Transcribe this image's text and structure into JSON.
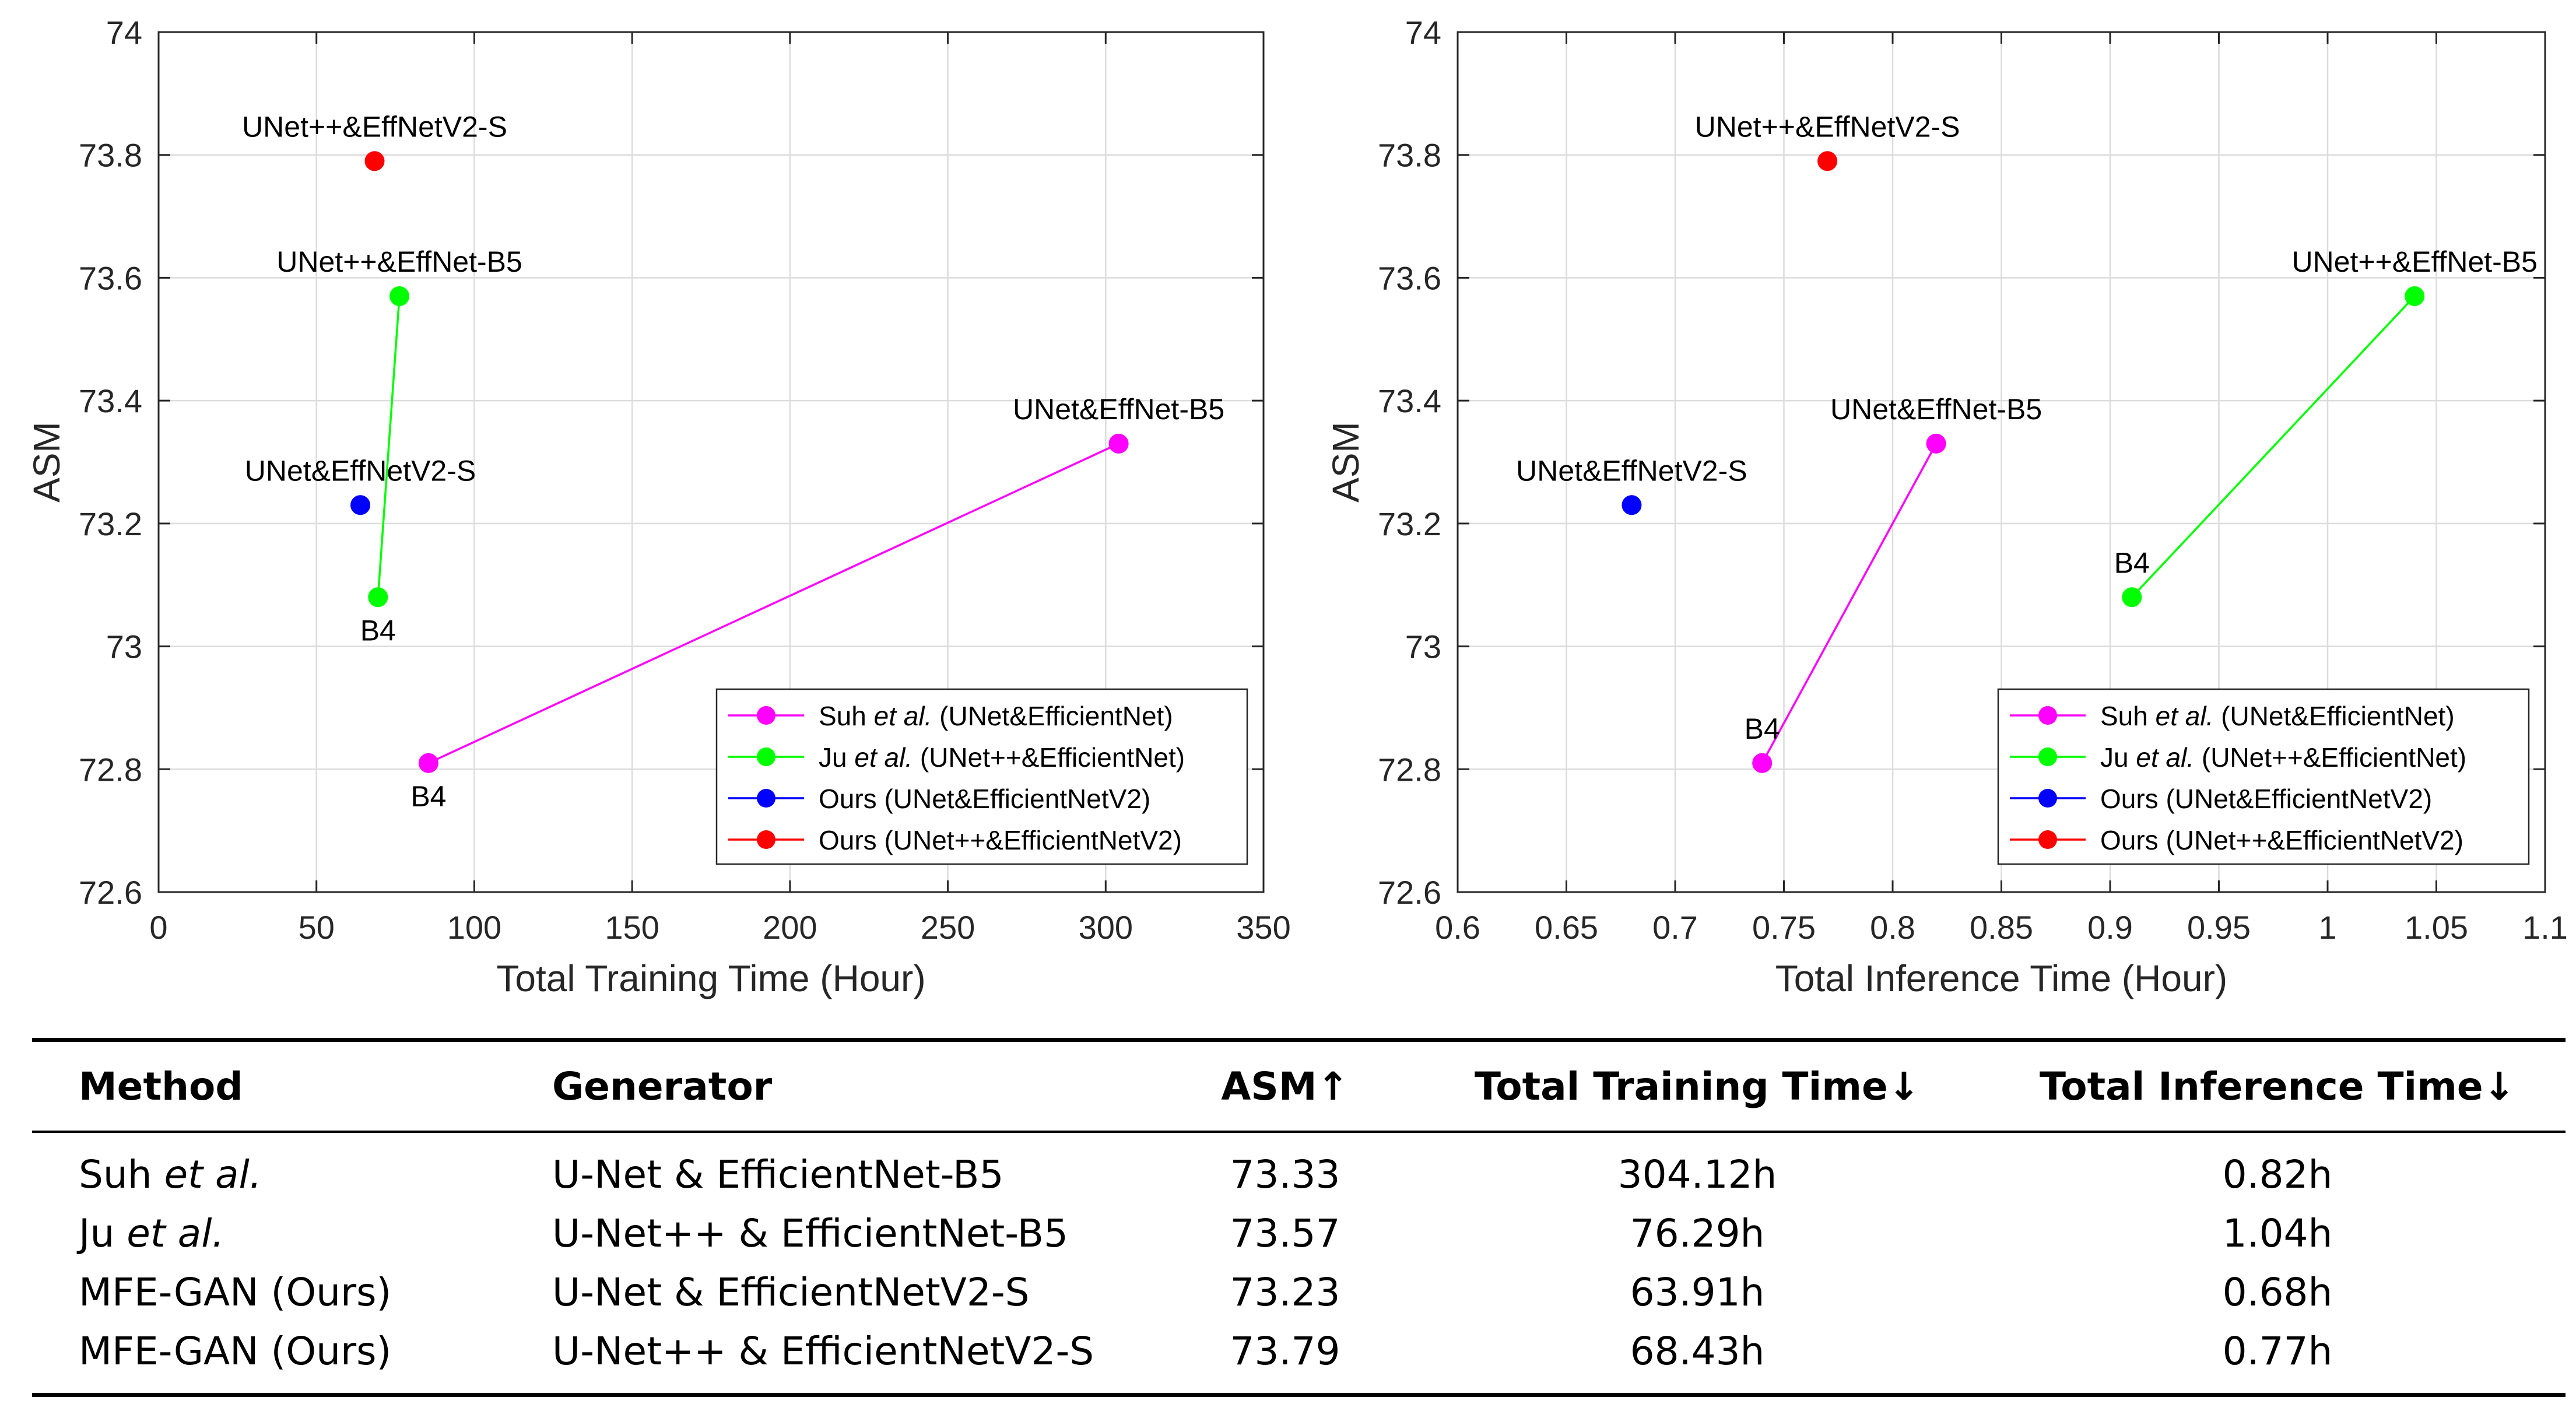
{
  "chart_data": [
    {
      "type": "scatter",
      "xlabel": "Total Training Time (Hour)",
      "ylabel": "ASM",
      "xlim": [
        0,
        350
      ],
      "ylim": [
        72.6,
        74
      ],
      "xticks": [
        "0",
        "50",
        "100",
        "150",
        "200",
        "250",
        "300",
        "350"
      ],
      "yticks": [
        "72.6",
        "72.8",
        "73",
        "73.2",
        "73.4",
        "73.6",
        "73.8",
        "74"
      ],
      "grid": true,
      "legend_position": "bottom-right",
      "series": [
        {
          "name_prefix": "Suh ",
          "name_italic": "et al.",
          "name_suffix": " (UNet&EfficientNet)",
          "color": "#ff00ff",
          "points": [
            {
              "x": 85.5,
              "y": 72.81,
              "label": "B4",
              "label_pos": "below"
            },
            {
              "x": 304.12,
              "y": 73.33,
              "label": "UNet&EffNet-B5",
              "label_pos": "above"
            }
          ]
        },
        {
          "name_prefix": "Ju ",
          "name_italic": "et al.",
          "name_suffix": " (UNet++&EfficientNet)",
          "color": "#00ff00",
          "points": [
            {
              "x": 69.5,
              "y": 73.08,
              "label": "B4",
              "label_pos": "below"
            },
            {
              "x": 76.29,
              "y": 73.57,
              "label": "UNet++&EffNet-B5",
              "label_pos": "above"
            }
          ]
        },
        {
          "name_prefix": "Ours (UNet&EfficientNetV2)",
          "name_italic": "",
          "name_suffix": "",
          "color": "#0000ff",
          "points": [
            {
              "x": 63.91,
              "y": 73.23,
              "label": "UNet&EffNetV2-S",
              "label_pos": "above"
            }
          ]
        },
        {
          "name_prefix": "Ours (UNet++&EfficientNetV2)",
          "name_italic": "",
          "name_suffix": "",
          "color": "#ff0000",
          "points": [
            {
              "x": 68.43,
              "y": 73.79,
              "label": "UNet++&EffNetV2-S",
              "label_pos": "above"
            }
          ]
        }
      ]
    },
    {
      "type": "scatter",
      "xlabel": "Total Inference Time (Hour)",
      "ylabel": "ASM",
      "xlim": [
        0.6,
        1.1
      ],
      "ylim": [
        72.6,
        74
      ],
      "xticks": [
        "0.6",
        "0.65",
        "0.7",
        "0.75",
        "0.8",
        "0.85",
        "0.9",
        "0.95",
        "1",
        "1.05",
        "1.1"
      ],
      "yticks": [
        "72.6",
        "72.8",
        "73",
        "73.2",
        "73.4",
        "73.6",
        "73.8",
        "74"
      ],
      "grid": true,
      "legend_position": "bottom-right",
      "series": [
        {
          "name_prefix": "Suh ",
          "name_italic": "et al.",
          "name_suffix": " (UNet&EfficientNet)",
          "color": "#ff00ff",
          "points": [
            {
              "x": 0.74,
              "y": 72.81,
              "label": "B4",
              "label_pos": "above"
            },
            {
              "x": 0.82,
              "y": 73.33,
              "label": "UNet&EffNet-B5",
              "label_pos": "above"
            }
          ]
        },
        {
          "name_prefix": "Ju ",
          "name_italic": "et al.",
          "name_suffix": " (UNet++&EfficientNet)",
          "color": "#00ff00",
          "points": [
            {
              "x": 0.91,
              "y": 73.08,
              "label": "B4",
              "label_pos": "above"
            },
            {
              "x": 1.04,
              "y": 73.57,
              "label": "UNet++&EffNet-B5",
              "label_pos": "above"
            }
          ]
        },
        {
          "name_prefix": "Ours (UNet&EfficientNetV2)",
          "name_italic": "",
          "name_suffix": "",
          "color": "#0000ff",
          "points": [
            {
              "x": 0.68,
              "y": 73.23,
              "label": "UNet&EffNetV2-S",
              "label_pos": "above"
            }
          ]
        },
        {
          "name_prefix": "Ours (UNet++&EfficientNetV2)",
          "name_italic": "",
          "name_suffix": "",
          "color": "#ff0000",
          "points": [
            {
              "x": 0.77,
              "y": 73.79,
              "label": "UNet++&EffNetV2-S",
              "label_pos": "above"
            }
          ]
        }
      ]
    }
  ],
  "table": {
    "headers": {
      "method": "Method",
      "generator": "Generator",
      "asm": "ASM↑",
      "training": "Total Training Time↓",
      "inference": "Total Inference Time↓"
    },
    "rows": [
      {
        "method": "Suh ",
        "method_italic": "et al.",
        "generator": "U-Net & EfficientNet-B5",
        "asm": "73.33",
        "training": "304.12h",
        "inference": "0.82h"
      },
      {
        "method": "Ju ",
        "method_italic": "et al.",
        "generator": "U-Net++ & EfficientNet-B5",
        "asm": "73.57",
        "training": "76.29h",
        "inference": "1.04h"
      },
      {
        "method": "MFE-GAN (Ours)",
        "method_italic": "",
        "generator": "U-Net & EfficientNetV2-S",
        "asm": "73.23",
        "training": "63.91h",
        "inference": "0.68h"
      },
      {
        "method": "MFE-GAN (Ours)",
        "method_italic": "",
        "generator": "U-Net++ & EfficientNetV2-S",
        "asm": "73.79",
        "training": "68.43h",
        "inference": "0.77h"
      }
    ]
  }
}
